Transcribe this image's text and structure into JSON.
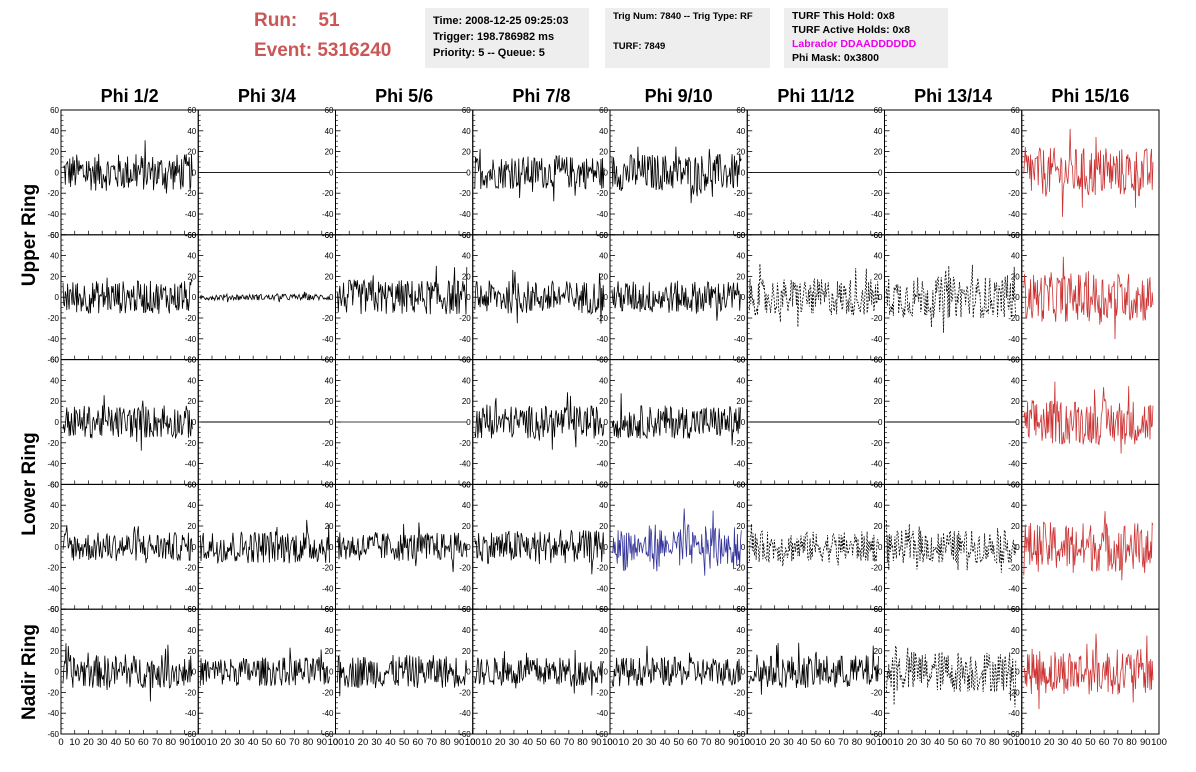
{
  "header": {
    "run_label": "Run:",
    "run_value": "51",
    "event_label": "Event:",
    "event_value": "5316240",
    "box1": [
      "Time: 2008-12-25 09:25:03",
      "Trigger: 198.786982 ms",
      "Priority: 5 -- Queue: 5"
    ],
    "box2": [
      "Trig Num: 7840 -- Trig Type: RF",
      "TURF: 7849"
    ],
    "box3": [
      "TURF This Hold: 0x8",
      "TURF Active Holds: 0x8",
      "Labrador DDAADDDDDD",
      "Phi Mask: 0x3800"
    ]
  },
  "colors": {
    "run": "#cc5555",
    "labrador": "#ee00ee",
    "normal": "#000000",
    "masked": "#cc3333",
    "highlight": "#333399"
  },
  "chart_data": {
    "type": "line",
    "column_titles": [
      "Phi 1/2",
      "Phi 3/4",
      "Phi 5/6",
      "Phi 7/8",
      "Phi 9/10",
      "Phi 11/12",
      "Phi 13/14",
      "Phi 15/16"
    ],
    "ring_labels": [
      "Upper Ring",
      "Lower Ring",
      "Nadir Ring"
    ],
    "ylim": [
      -60,
      60
    ],
    "xlim": [
      0,
      100
    ],
    "y_ticks": [
      "60",
      "40",
      "20",
      "0",
      "-20",
      "-40",
      "-60"
    ],
    "x_ticks": [
      "0",
      "10",
      "20",
      "30",
      "40",
      "50",
      "60",
      "70",
      "80",
      "90",
      "100"
    ],
    "trace_styles": [
      [
        "normal",
        "flat",
        "normal",
        "normal",
        "normal",
        "flat",
        "flat",
        "masked"
      ],
      [
        "normal",
        "small",
        "normal",
        "normal",
        "normal",
        "dashed",
        "dashed",
        "masked"
      ],
      [
        "normal",
        "flat",
        "normal",
        "normal",
        "normal",
        "flat",
        "flat",
        "masked"
      ],
      [
        "normal",
        "normal",
        "normal",
        "normal",
        "highlight",
        "dashed",
        "dashed",
        "masked"
      ],
      [
        "normal",
        "normal",
        "normal",
        "normal",
        "normal",
        "normal",
        "dashed",
        "masked"
      ]
    ],
    "trace_amplitude": [
      [
        18,
        0,
        0,
        16,
        18,
        0,
        0,
        24
      ],
      [
        16,
        3,
        17,
        16,
        16,
        18,
        20,
        24
      ],
      [
        16,
        0,
        0,
        16,
        16,
        0,
        0,
        22
      ],
      [
        14,
        16,
        14,
        16,
        16,
        15,
        16,
        24
      ],
      [
        16,
        14,
        16,
        14,
        14,
        16,
        20,
        22
      ]
    ]
  }
}
